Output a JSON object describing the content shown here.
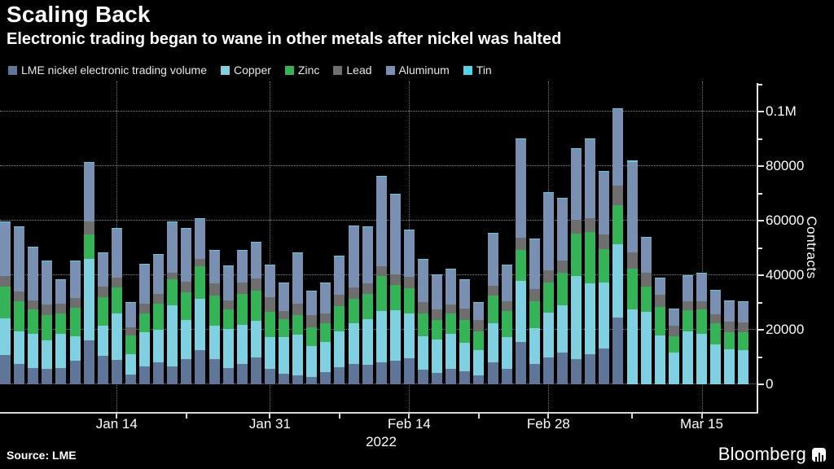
{
  "header": {
    "title": "Scaling Back",
    "subtitle": "Electronic trading began to wane in other metals after nickel was halted"
  },
  "colors": {
    "nickel": "#5f7699",
    "copper": "#7fd0e0",
    "zinc": "#34b457",
    "lead": "#6e6e6e",
    "aluminum": "#7990b2",
    "tin": "#4fd5e9",
    "background": "#000000",
    "axis": "#e6e6e6",
    "grid": "#ffffff"
  },
  "legend": [
    {
      "label": "LME nickel electronic trading volume",
      "color": "#5f7699"
    },
    {
      "label": "Copper",
      "color": "#7fd0e0"
    },
    {
      "label": "Zinc",
      "color": "#34b457"
    },
    {
      "label": "Lead",
      "color": "#6e6e6e"
    },
    {
      "label": "Aluminum",
      "color": "#7990b2"
    },
    {
      "label": "Tin",
      "color": "#4fd5e9"
    }
  ],
  "chart_data": {
    "type": "bar",
    "stacked": true,
    "title": "Scaling Back",
    "ylabel": "Contracts",
    "xlabel": "2022",
    "ylim": [
      0,
      111000
    ],
    "grid": "dotted",
    "legend_position": "top",
    "x": [
      "Jan 4",
      "Jan 5",
      "Jan 6",
      "Jan 7",
      "Jan 10",
      "Jan 11",
      "Jan 12",
      "Jan 13",
      "Jan 14",
      "Jan 17",
      "Jan 18",
      "Jan 19",
      "Jan 20",
      "Jan 21",
      "Jan 24",
      "Jan 25",
      "Jan 26",
      "Jan 27",
      "Jan 28",
      "Jan 31",
      "Feb 1",
      "Feb 2",
      "Feb 3",
      "Feb 4",
      "Feb 7",
      "Feb 8",
      "Feb 9",
      "Feb 10",
      "Feb 11",
      "Feb 14",
      "Feb 15",
      "Feb 16",
      "Feb 17",
      "Feb 18",
      "Feb 21",
      "Feb 22",
      "Feb 23",
      "Feb 24",
      "Feb 25",
      "Feb 28",
      "Mar 1",
      "Mar 2",
      "Mar 3",
      "Mar 4",
      "Mar 7",
      "Mar 8",
      "Mar 9",
      "Mar 10",
      "Mar 11",
      "Mar 14",
      "Mar 15",
      "Mar 16",
      "Mar 17",
      "Mar 18"
    ],
    "series": [
      {
        "name": "LME nickel electronic trading volume",
        "color": "#5f7699",
        "values": [
          10700,
          7600,
          6000,
          5600,
          6100,
          8600,
          16000,
          10500,
          9100,
          3600,
          6600,
          8100,
          6600,
          9400,
          12500,
          9400,
          6100,
          7600,
          10000,
          5600,
          3800,
          3400,
          2600,
          4400,
          6400,
          7600,
          7100,
          8100,
          8600,
          9600,
          5400,
          4100,
          5600,
          4800,
          3400,
          8100,
          5800,
          15500,
          7600,
          9800,
          11500,
          9400,
          11000,
          13000,
          24500,
          0,
          0,
          0,
          0,
          0,
          0,
          0,
          0,
          0
        ]
      },
      {
        "name": "Copper",
        "color": "#7fd0e0",
        "values": [
          13600,
          11900,
          12500,
          10400,
          12400,
          8900,
          29900,
          11000,
          16900,
          7400,
          12400,
          11900,
          22400,
          14100,
          18900,
          12100,
          14200,
          14100,
          13300,
          11700,
          13500,
          14900,
          11400,
          11100,
          13100,
          14900,
          16900,
          18900,
          18700,
          16400,
          12300,
          12400,
          12900,
          10500,
          9100,
          14400,
          11500,
          22400,
          12900,
          16500,
          17500,
          30200,
          25900,
          24400,
          26900,
          27500,
          26500,
          18000,
          11500,
          19500,
          18500,
          14500,
          12700,
          12500
        ]
      },
      {
        "name": "Zinc",
        "color": "#34b457",
        "values": [
          11500,
          11000,
          9000,
          9500,
          7500,
          10500,
          8900,
          10400,
          9400,
          6900,
          7000,
          9700,
          9500,
          10200,
          11800,
          10900,
          7200,
          11500,
          11100,
          9200,
          6700,
          7200,
          7000,
          7000,
          9200,
          8900,
          9100,
          12600,
          9100,
          9200,
          8300,
          7200,
          7500,
          8200,
          7000,
          9900,
          9700,
          11400,
          9900,
          11100,
          11900,
          15700,
          18900,
          12100,
          14400,
          14900,
          9400,
          10500,
          6200,
          7700,
          9000,
          7800,
          6300,
          6500
        ]
      },
      {
        "name": "Lead",
        "color": "#6e6e6e",
        "values": [
          3800,
          3500,
          3200,
          3800,
          3600,
          3600,
          5000,
          4000,
          3800,
          3100,
          3500,
          3300,
          2500,
          4000,
          2700,
          4500,
          3400,
          4000,
          4500,
          5400,
          3000,
          4100,
          4300,
          3500,
          4000,
          4200,
          3800,
          3800,
          4000,
          4200,
          4200,
          3800,
          3300,
          4200,
          4200,
          3800,
          3600,
          4500,
          4500,
          4500,
          4500,
          5000,
          5200,
          5500,
          7000,
          6000,
          5000,
          4400,
          3800,
          3200,
          3100,
          3400,
          4000,
          3800
        ]
      },
      {
        "name": "Aluminum",
        "color": "#7990b2",
        "values": [
          19900,
          23500,
          19500,
          15800,
          8800,
          13500,
          21400,
          12200,
          17900,
          9100,
          14500,
          14600,
          18500,
          19400,
          14800,
          12200,
          12500,
          11800,
          13200,
          11700,
          10100,
          18600,
          8900,
          11200,
          14200,
          22500,
          20900,
          32600,
          29400,
          17000,
          15500,
          12700,
          12900,
          10500,
          6300,
          19100,
          13000,
          36000,
          18400,
          28200,
          22800,
          26000,
          29000,
          23000,
          28000,
          33000,
          12800,
          6000,
          6100,
          9400,
          10100,
          8700,
          7500,
          7500
        ]
      },
      {
        "name": "Tin",
        "color": "#4fd5e9",
        "values": [
          300,
          300,
          300,
          300,
          200,
          200,
          300,
          200,
          200,
          200,
          200,
          200,
          200,
          200,
          200,
          200,
          200,
          200,
          200,
          200,
          200,
          200,
          200,
          200,
          200,
          200,
          200,
          400,
          200,
          200,
          200,
          200,
          200,
          200,
          200,
          200,
          200,
          400,
          200,
          300,
          300,
          200,
          200,
          200,
          300,
          800,
          300,
          200,
          200,
          200,
          200,
          200,
          200,
          200
        ]
      }
    ],
    "y_ticks": [
      {
        "value": 0,
        "label": "0"
      },
      {
        "value": 20000,
        "label": "20000"
      },
      {
        "value": 40000,
        "label": "40000"
      },
      {
        "value": 60000,
        "label": "60000"
      },
      {
        "value": 80000,
        "label": "80000"
      },
      {
        "value": 100000,
        "label": "0.1M"
      }
    ],
    "y_minor_ticks": [
      10000,
      30000,
      50000,
      70000,
      90000,
      110000
    ],
    "x_ticks": [
      {
        "bar_index": 8,
        "label": "Jan 14"
      },
      {
        "bar_index": 19,
        "label": "Jan 31"
      },
      {
        "bar_index": 29,
        "label": "Feb 14"
      },
      {
        "bar_index": 39,
        "label": "Feb 28"
      },
      {
        "bar_index": 50,
        "label": "Mar 15"
      }
    ],
    "x_minor_tick_bar_indices": [
      13,
      24,
      34,
      45
    ],
    "x_axis_caption": "2022"
  },
  "footer": {
    "source": "Source: LME",
    "brand": "Bloomberg"
  }
}
